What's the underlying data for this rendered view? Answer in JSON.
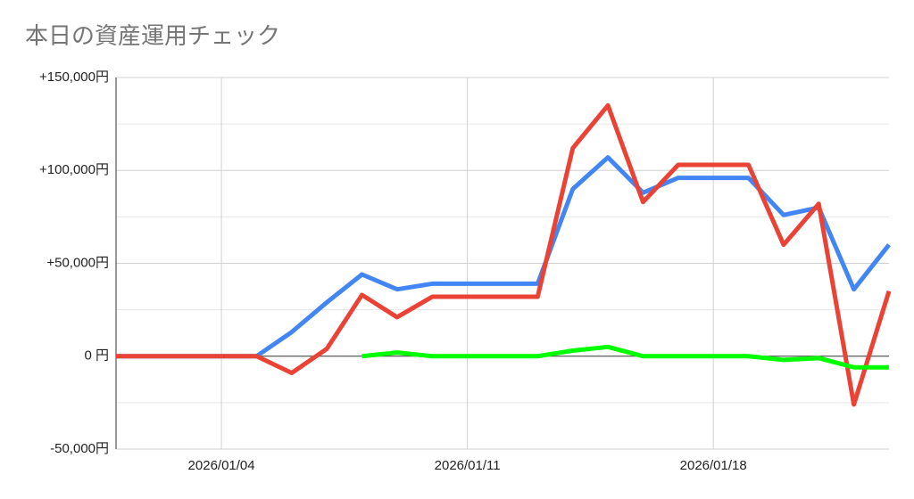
{
  "chart_data": {
    "type": "line",
    "title": "本日の資産運用チェック",
    "x": [
      "2026/01/01",
      "2026/01/02",
      "2026/01/03",
      "2026/01/04",
      "2026/01/05",
      "2026/01/06",
      "2026/01/07",
      "2026/01/08",
      "2026/01/09",
      "2026/01/10",
      "2026/01/11",
      "2026/01/12",
      "2026/01/13",
      "2026/01/14",
      "2026/01/15",
      "2026/01/16",
      "2026/01/17",
      "2026/01/18",
      "2026/01/19",
      "2026/01/20",
      "2026/01/21",
      "2026/01/22",
      "2026/01/23"
    ],
    "xlim": [
      "2026/01/01",
      "2026/01/23"
    ],
    "xticks": [
      "2026/01/04",
      "2026/01/11",
      "2026/01/18"
    ],
    "ylim": [
      -50000,
      150000
    ],
    "yticks": [
      {
        "value": -50000,
        "label": "-50,000円"
      },
      {
        "value": 0,
        "label": "0 円"
      },
      {
        "value": 50000,
        "label": "+50,000円"
      },
      {
        "value": 100000,
        "label": "+100,000円"
      },
      {
        "value": 150000,
        "label": "+150,000円"
      }
    ],
    "minor_yticks": [
      -25000,
      25000,
      75000,
      125000
    ],
    "grid": true,
    "series": [
      {
        "color": "#4285f4",
        "values": [
          0,
          0,
          0,
          0,
          0,
          13000,
          29000,
          44000,
          36000,
          39000,
          39000,
          39000,
          39000,
          90000,
          107000,
          88000,
          96000,
          96000,
          96000,
          76000,
          80000,
          36000,
          60000
        ]
      },
      {
        "color": "#ea4335",
        "values": [
          0,
          0,
          0,
          0,
          0,
          -9000,
          4000,
          33000,
          21000,
          32000,
          32000,
          32000,
          32000,
          112000,
          135000,
          83000,
          103000,
          103000,
          103000,
          60000,
          82000,
          -26000,
          35000
        ]
      },
      {
        "color": "#00ff00",
        "values": [
          null,
          null,
          null,
          null,
          null,
          null,
          null,
          0,
          2000,
          0,
          0,
          0,
          0,
          3000,
          5000,
          0,
          0,
          0,
          0,
          -2000,
          -1000,
          -6000,
          -6000
        ]
      }
    ]
  }
}
